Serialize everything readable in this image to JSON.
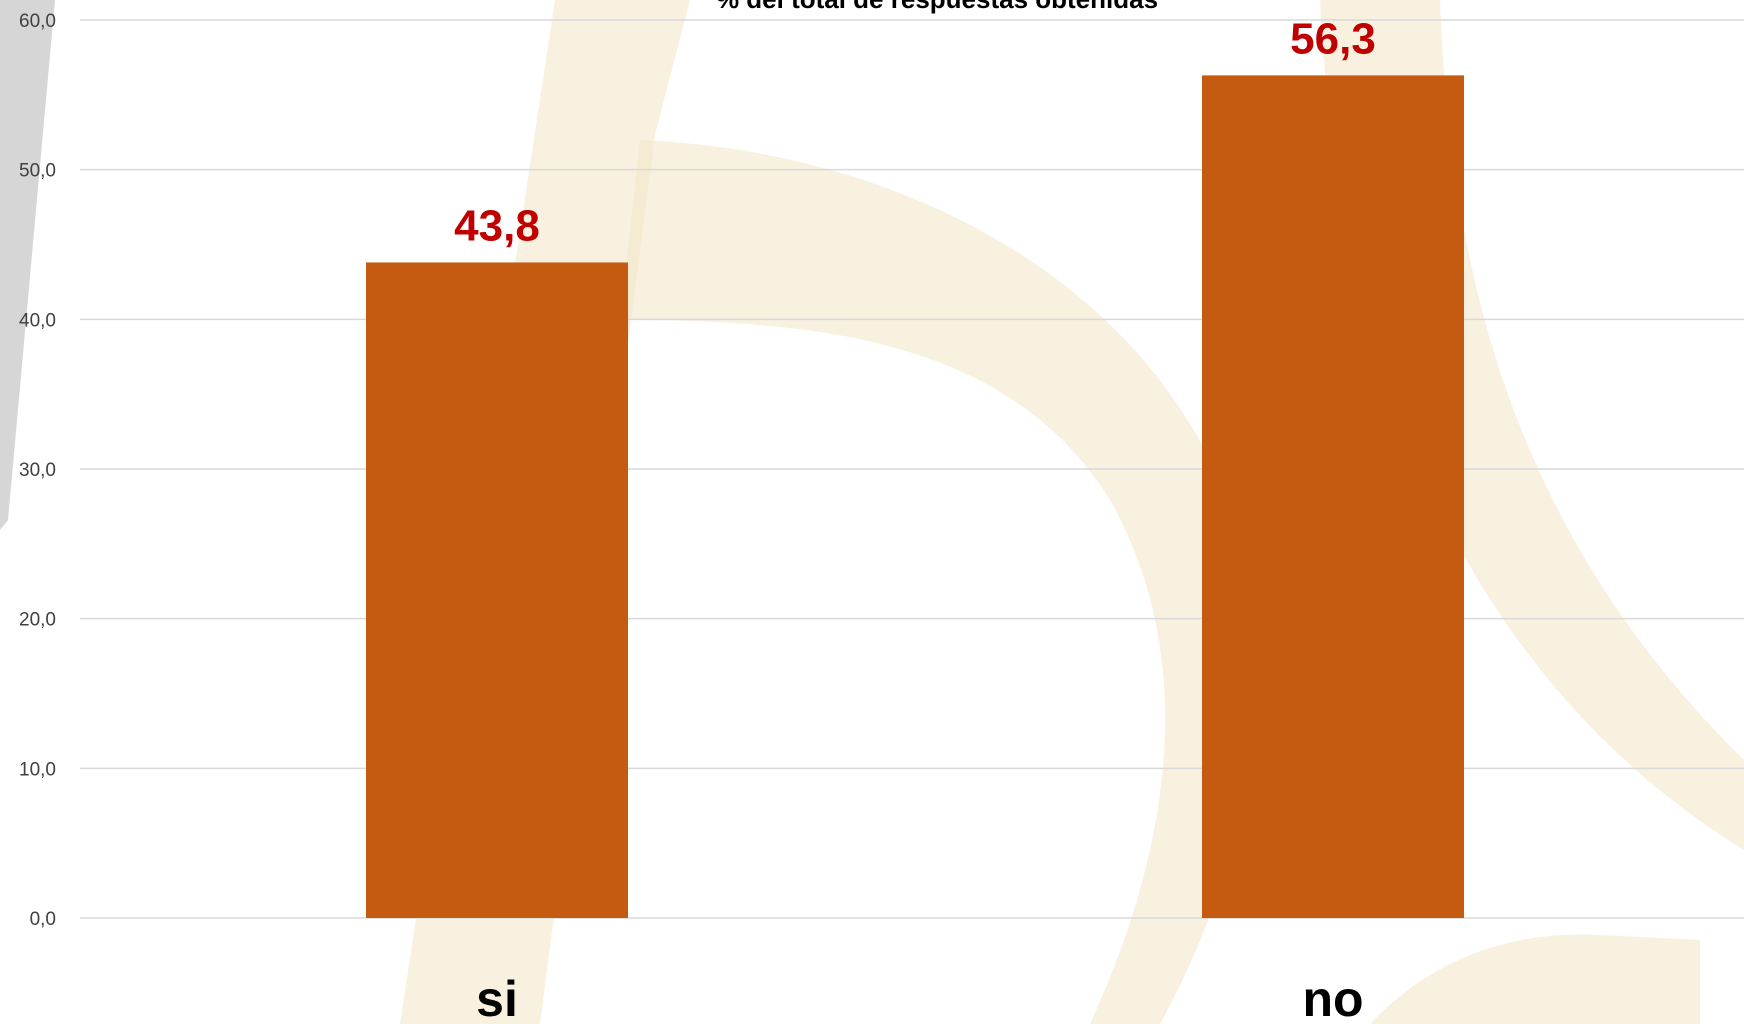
{
  "chart_data": {
    "type": "bar",
    "title": "% del total de respuestas obtenidas",
    "categories": [
      "si",
      "no"
    ],
    "values": [
      43.8,
      56.3
    ],
    "value_labels": [
      "43,8",
      "56,3"
    ],
    "y_ticks": [
      "0,0",
      "10,0",
      "20,0",
      "30,0",
      "40,0",
      "50,0",
      "60,0"
    ],
    "ylim": [
      0,
      60
    ],
    "grid": true,
    "legend": "none",
    "xlabel": "",
    "ylabel": ""
  },
  "colors": {
    "bar": "#C55A11",
    "data_label": "#C00000",
    "gridline": "#D9D9D9",
    "watermark": "#F2E6C6",
    "left_band": "#D6D6D6"
  }
}
